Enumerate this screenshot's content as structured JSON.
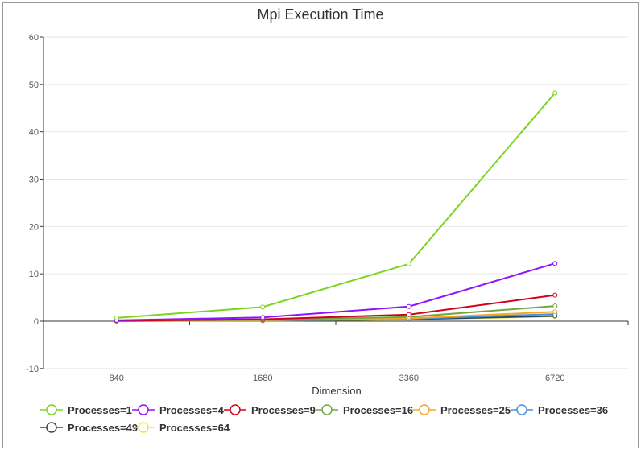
{
  "chart_data": {
    "type": "line",
    "title": "Mpi Execution Time",
    "xlabel": "Dimension",
    "ylabel": "",
    "categories": [
      "840",
      "1680",
      "3360",
      "6720"
    ],
    "ylim": [
      -10,
      60
    ],
    "yticks": [
      -10,
      0,
      10,
      20,
      30,
      40,
      50,
      60
    ],
    "grid": true,
    "legend_position": "bottom",
    "series": [
      {
        "name": "Processes=1",
        "color": "#7ed321",
        "values": [
          0.7,
          3.0,
          12.1,
          48.2
        ]
      },
      {
        "name": "Processes=4",
        "color": "#9013fe",
        "values": [
          0.2,
          0.8,
          3.1,
          12.2
        ]
      },
      {
        "name": "Processes=9",
        "color": "#d0021b",
        "values": [
          0.1,
          0.4,
          1.4,
          5.5
        ]
      },
      {
        "name": "Processes=16",
        "color": "#6ea845",
        "values": [
          0.05,
          0.3,
          0.9,
          3.2
        ]
      },
      {
        "name": "Processes=25",
        "color": "#f5a623",
        "values": [
          0.05,
          0.2,
          0.6,
          2.0
        ]
      },
      {
        "name": "Processes=36",
        "color": "#4a90d9",
        "values": [
          0.05,
          0.15,
          0.5,
          1.5
        ]
      },
      {
        "name": "Processes=49",
        "color": "#2b4a5e",
        "values": [
          0.05,
          0.1,
          0.4,
          1.1
        ]
      },
      {
        "name": "Processes=64",
        "color": "#f8e71c",
        "values": [
          0.05,
          0.1,
          0.35,
          1.0
        ]
      }
    ]
  }
}
